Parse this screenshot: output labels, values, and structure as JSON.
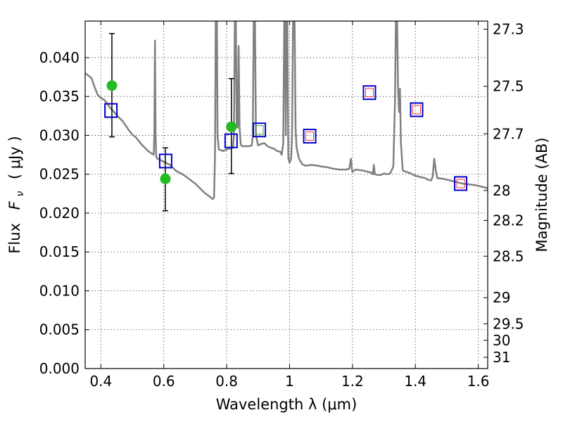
{
  "chart_data": {
    "type": "scatter",
    "xlabel": "Wavelength  λ (μm)",
    "ylabel_text": "Flux",
    "ylabel_math": "F",
    "ylabel_sub": "ν",
    "ylabel_unit": "( μJy )",
    "y2label": "Magnitude (AB)",
    "xlim": [
      0.35,
      1.63
    ],
    "ylim": [
      0.0,
      0.0447
    ],
    "xticks": [
      0.4,
      0.6,
      0.8,
      1.0,
      1.2,
      1.4,
      1.6
    ],
    "xtick_labels": [
      "0.4",
      "0.6",
      "0.8",
      "1",
      "1.2",
      "1.4",
      "1.6"
    ],
    "yticks": [
      0.0,
      0.005,
      0.01,
      0.015,
      0.02,
      0.025,
      0.03,
      0.035,
      0.04
    ],
    "ytick_labels": [
      "0.000",
      "0.005",
      "0.010",
      "0.015",
      "0.020",
      "0.025",
      "0.030",
      "0.035",
      "0.040"
    ],
    "y2ticks": [
      {
        "label": "27.3",
        "mag": 27.3
      },
      {
        "label": "27.5",
        "mag": 27.5
      },
      {
        "label": "27.7",
        "mag": 27.7
      },
      {
        "label": "28",
        "mag": 28.0
      },
      {
        "label": "28.2",
        "mag": 28.2
      },
      {
        "label": "28.5",
        "mag": 28.5
      },
      {
        "label": "29",
        "mag": 29.0
      },
      {
        "label": "29.5",
        "mag": 29.5
      },
      {
        "label": "30",
        "mag": 30.0
      },
      {
        "label": "31",
        "mag": 31.0
      }
    ],
    "grid": true,
    "colors": {
      "spectrum": "#808080",
      "observed": "#22bb22",
      "model_box": "#0000cc",
      "inner_red": "#ff3333",
      "inner_green": "#33aa33"
    },
    "spectrum": [
      [
        0.35,
        0.038
      ],
      [
        0.36,
        0.0377
      ],
      [
        0.37,
        0.0374
      ],
      [
        0.38,
        0.0362
      ],
      [
        0.39,
        0.0352
      ],
      [
        0.4,
        0.0348
      ],
      [
        0.41,
        0.0346
      ],
      [
        0.42,
        0.0341
      ],
      [
        0.43,
        0.0335
      ],
      [
        0.44,
        0.0331
      ],
      [
        0.45,
        0.0326
      ],
      [
        0.46,
        0.0322
      ],
      [
        0.47,
        0.0318
      ],
      [
        0.48,
        0.0312
      ],
      [
        0.49,
        0.0306
      ],
      [
        0.5,
        0.0301
      ],
      [
        0.51,
        0.0298
      ],
      [
        0.52,
        0.0293
      ],
      [
        0.53,
        0.0288
      ],
      [
        0.54,
        0.0284
      ],
      [
        0.55,
        0.028
      ],
      [
        0.56,
        0.0277
      ],
      [
        0.565,
        0.0276
      ],
      [
        0.568,
        0.0275
      ],
      [
        0.57,
        0.03
      ],
      [
        0.572,
        0.0422
      ],
      [
        0.574,
        0.03
      ],
      [
        0.576,
        0.0272
      ],
      [
        0.58,
        0.027
      ],
      [
        0.59,
        0.0268
      ],
      [
        0.6,
        0.0266
      ],
      [
        0.61,
        0.0264
      ],
      [
        0.62,
        0.0262
      ],
      [
        0.63,
        0.0258
      ],
      [
        0.64,
        0.0254
      ],
      [
        0.65,
        0.0252
      ],
      [
        0.66,
        0.025
      ],
      [
        0.67,
        0.0247
      ],
      [
        0.68,
        0.0244
      ],
      [
        0.69,
        0.0241
      ],
      [
        0.7,
        0.0238
      ],
      [
        0.71,
        0.0234
      ],
      [
        0.72,
        0.023
      ],
      [
        0.73,
        0.0226
      ],
      [
        0.74,
        0.0223
      ],
      [
        0.75,
        0.022
      ],
      [
        0.755,
        0.0218
      ],
      [
        0.76,
        0.022
      ],
      [
        0.763,
        0.028
      ],
      [
        0.765,
        0.0447
      ],
      [
        0.769,
        0.0447
      ],
      [
        0.771,
        0.03
      ],
      [
        0.775,
        0.0282
      ],
      [
        0.78,
        0.0281
      ],
      [
        0.79,
        0.028
      ],
      [
        0.8,
        0.0282
      ],
      [
        0.81,
        0.0283
      ],
      [
        0.82,
        0.0284
      ],
      [
        0.823,
        0.03
      ],
      [
        0.826,
        0.0447
      ],
      [
        0.829,
        0.0447
      ],
      [
        0.832,
        0.031
      ],
      [
        0.835,
        0.031
      ],
      [
        0.838,
        0.0415
      ],
      [
        0.841,
        0.031
      ],
      [
        0.845,
        0.0288
      ],
      [
        0.85,
        0.0286
      ],
      [
        0.86,
        0.0286
      ],
      [
        0.87,
        0.0286
      ],
      [
        0.88,
        0.0287
      ],
      [
        0.883,
        0.03
      ],
      [
        0.886,
        0.0447
      ],
      [
        0.89,
        0.0447
      ],
      [
        0.893,
        0.03
      ],
      [
        0.9,
        0.0287
      ],
      [
        0.91,
        0.0289
      ],
      [
        0.92,
        0.029
      ],
      [
        0.93,
        0.0286
      ],
      [
        0.94,
        0.0284
      ],
      [
        0.95,
        0.0283
      ],
      [
        0.96,
        0.028
      ],
      [
        0.97,
        0.0279
      ],
      [
        0.975,
        0.0275
      ],
      [
        0.98,
        0.029
      ],
      [
        0.983,
        0.0447
      ],
      [
        0.986,
        0.0447
      ],
      [
        0.988,
        0.03
      ],
      [
        0.99,
        0.0447
      ],
      [
        0.993,
        0.0447
      ],
      [
        0.996,
        0.027
      ],
      [
        1.0,
        0.0265
      ],
      [
        1.005,
        0.027
      ],
      [
        1.008,
        0.03
      ],
      [
        1.011,
        0.0447
      ],
      [
        1.016,
        0.0447
      ],
      [
        1.019,
        0.031
      ],
      [
        1.022,
        0.0285
      ],
      [
        1.03,
        0.027
      ],
      [
        1.04,
        0.0263
      ],
      [
        1.05,
        0.0261
      ],
      [
        1.07,
        0.0262
      ],
      [
        1.09,
        0.0261
      ],
      [
        1.1,
        0.026
      ],
      [
        1.12,
        0.0259
      ],
      [
        1.14,
        0.0257
      ],
      [
        1.16,
        0.0256
      ],
      [
        1.18,
        0.0256
      ],
      [
        1.19,
        0.0257
      ],
      [
        1.195,
        0.027
      ],
      [
        1.198,
        0.0257
      ],
      [
        1.2,
        0.0253
      ],
      [
        1.21,
        0.0256
      ],
      [
        1.23,
        0.0255
      ],
      [
        1.25,
        0.0253
      ],
      [
        1.26,
        0.0252
      ],
      [
        1.265,
        0.025
      ],
      [
        1.268,
        0.0262
      ],
      [
        1.271,
        0.025
      ],
      [
        1.28,
        0.0249
      ],
      [
        1.29,
        0.0249
      ],
      [
        1.3,
        0.0251
      ],
      [
        1.31,
        0.025
      ],
      [
        1.32,
        0.0251
      ],
      [
        1.33,
        0.026
      ],
      [
        1.335,
        0.034
      ],
      [
        1.338,
        0.0447
      ],
      [
        1.342,
        0.0447
      ],
      [
        1.345,
        0.036
      ],
      [
        1.348,
        0.033
      ],
      [
        1.351,
        0.036
      ],
      [
        1.354,
        0.029
      ],
      [
        1.36,
        0.0255
      ],
      [
        1.37,
        0.0253
      ],
      [
        1.38,
        0.0252
      ],
      [
        1.39,
        0.025
      ],
      [
        1.4,
        0.0248
      ],
      [
        1.41,
        0.0247
      ],
      [
        1.42,
        0.0246
      ],
      [
        1.43,
        0.0245
      ],
      [
        1.44,
        0.0243
      ],
      [
        1.45,
        0.0242
      ],
      [
        1.455,
        0.0247
      ],
      [
        1.46,
        0.027
      ],
      [
        1.465,
        0.0255
      ],
      [
        1.47,
        0.0245
      ],
      [
        1.49,
        0.0244
      ],
      [
        1.51,
        0.0242
      ],
      [
        1.53,
        0.024
      ],
      [
        1.55,
        0.0238
      ],
      [
        1.57,
        0.0237
      ],
      [
        1.59,
        0.0236
      ],
      [
        1.61,
        0.0234
      ],
      [
        1.63,
        0.0232
      ]
    ],
    "observed": [
      {
        "x": 0.435,
        "y": 0.0364,
        "err_lo": 0.0298,
        "err_hi": 0.0431
      },
      {
        "x": 0.605,
        "y": 0.0244,
        "err_lo": 0.0203,
        "err_hi": 0.0284
      },
      {
        "x": 0.815,
        "y": 0.0311,
        "err_lo": 0.0251,
        "err_hi": 0.0373
      }
    ],
    "model": [
      {
        "x": 0.432,
        "y": 0.0332,
        "inner": "none"
      },
      {
        "x": 0.606,
        "y": 0.0267,
        "inner": "none"
      },
      {
        "x": 0.814,
        "y": 0.0293,
        "inner": "none"
      },
      {
        "x": 0.904,
        "y": 0.0307,
        "inner": "green"
      },
      {
        "x": 1.064,
        "y": 0.0299,
        "inner": "red"
      },
      {
        "x": 1.254,
        "y": 0.0355,
        "inner": "red"
      },
      {
        "x": 1.404,
        "y": 0.0333,
        "inner": "red"
      },
      {
        "x": 1.544,
        "y": 0.0238,
        "inner": "red"
      }
    ]
  }
}
